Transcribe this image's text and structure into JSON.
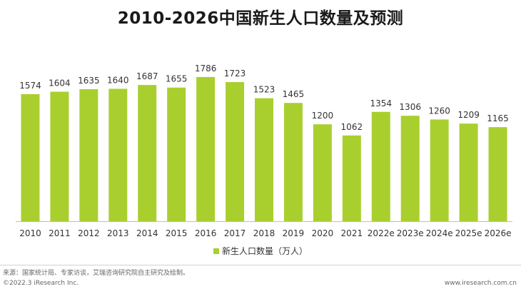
{
  "chart_data": {
    "type": "bar",
    "title": "2010-2026中国新生人口数量及预测",
    "categories": [
      "2010",
      "2011",
      "2012",
      "2013",
      "2014",
      "2015",
      "2016",
      "2017",
      "2018",
      "2019",
      "2020",
      "2021",
      "2022e",
      "2023e",
      "2024e",
      "2025e",
      "2026e"
    ],
    "series": [
      {
        "name": "新生人口数量（万人）",
        "values": [
          1574,
          1604,
          1635,
          1640,
          1687,
          1655,
          1786,
          1723,
          1523,
          1465,
          1200,
          1062,
          1354,
          1306,
          1260,
          1209,
          1165
        ]
      }
    ],
    "xlabel": "",
    "ylabel": "",
    "ylim": [
      0,
      1900
    ],
    "grid": false,
    "legend": "bottom-center",
    "bar_color": "#a9cf2f"
  },
  "footer": {
    "source": "来源：国家统计局、专家访谈，艾瑞咨询研究院自主研究及绘制。",
    "copyright": "©2022.3 iResearch Inc.",
    "site": "www.iresearch.com.cn"
  }
}
